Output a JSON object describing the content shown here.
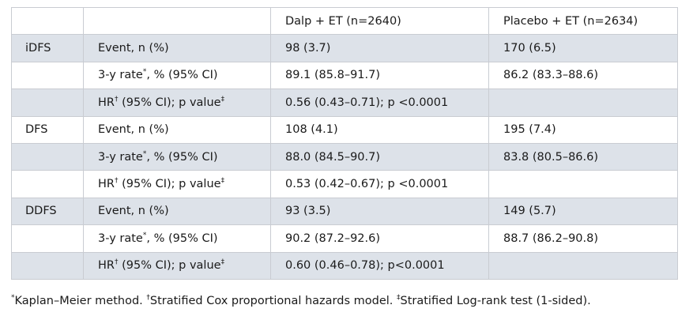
{
  "header": {
    "col1": "",
    "col2": "",
    "col3": "Dalp + ET (n=2640)",
    "col4": "Placebo + ET (n=2634)"
  },
  "groups": [
    {
      "label": "iDFS",
      "rows": [
        {
          "measure": "Event, n (%)",
          "mark": "",
          "suffix": "",
          "mark2": "",
          "dalp": "98 (3.7)",
          "placebo": "170 (6.5)"
        },
        {
          "measure": "3-y rate",
          "mark": "*",
          "suffix": ", % (95% CI)",
          "mark2": "",
          "dalp": "89.1 (85.8–91.7)",
          "placebo": "86.2 (83.3–88.6)"
        },
        {
          "measure": "HR",
          "mark": "†",
          "suffix": " (95% CI); p value",
          "mark2": "‡",
          "dalp": "0.56 (0.43–0.71); p <0.0001",
          "placebo": ""
        }
      ]
    },
    {
      "label": "DFS",
      "rows": [
        {
          "measure": "Event, n (%)",
          "mark": "",
          "suffix": "",
          "mark2": "",
          "dalp": "108 (4.1)",
          "placebo": "195 (7.4)"
        },
        {
          "measure": "3-y rate",
          "mark": "*",
          "suffix": ", % (95% CI)",
          "mark2": "",
          "dalp": "88.0 (84.5–90.7)",
          "placebo": "83.8 (80.5–86.6)"
        },
        {
          "measure": "HR",
          "mark": "†",
          "suffix": " (95% CI); p value",
          "mark2": "‡",
          "dalp": "0.53 (0.42–0.67); p <0.0001",
          "placebo": ""
        }
      ]
    },
    {
      "label": "DDFS",
      "rows": [
        {
          "measure": "Event, n (%)",
          "mark": "",
          "suffix": "",
          "mark2": "",
          "dalp": "93 (3.5)",
          "placebo": "149 (5.7)"
        },
        {
          "measure": "3-y rate",
          "mark": "*",
          "suffix": ", % (95% CI)",
          "mark2": "",
          "dalp": "90.2 (87.2–92.6)",
          "placebo": "88.7 (86.2–90.8)"
        },
        {
          "measure": "HR",
          "mark": "†",
          "suffix": " (95% CI); p value",
          "mark2": "‡",
          "dalp": "0.60 (0.46–0.78); p<0.0001",
          "placebo": ""
        }
      ]
    }
  ],
  "footnote": {
    "m1": "*",
    "t1": "Kaplan–Meier method. ",
    "m2": "†",
    "t2": "Stratified Cox proportional hazards model. ",
    "m3": "‡",
    "t3": "Stratified Log-rank test (1-sided)."
  },
  "colors": {
    "shade": "#dde2e9",
    "border": "#c9ccd2",
    "text": "#1a1a1a"
  }
}
